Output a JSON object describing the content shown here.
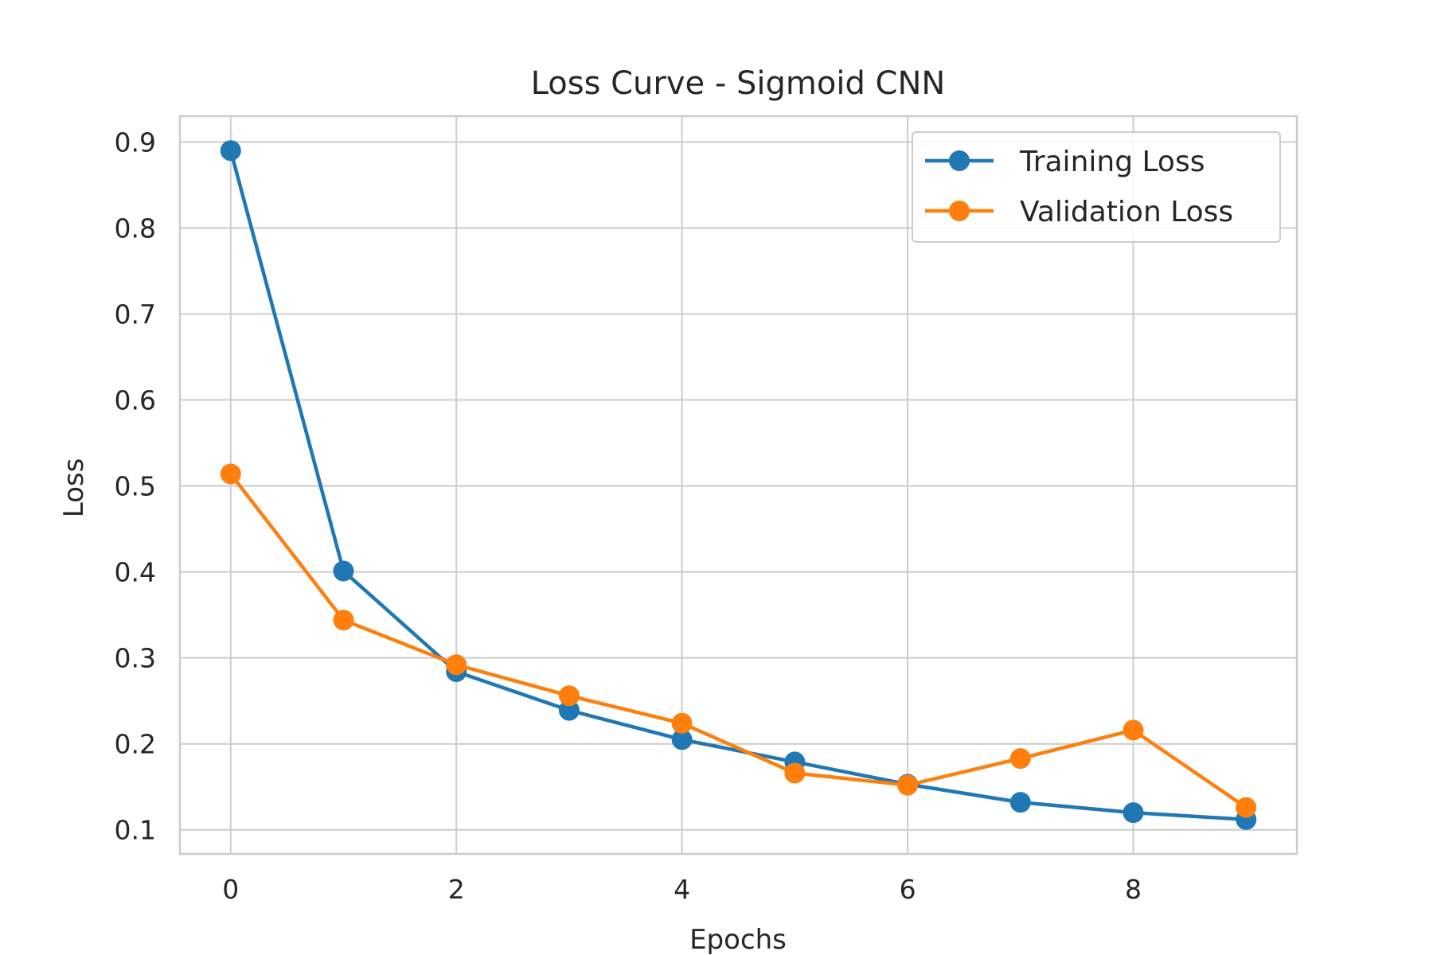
{
  "chart_data": {
    "type": "line",
    "title": "Loss Curve - Sigmoid CNN",
    "xlabel": "Epochs",
    "ylabel": "Loss",
    "x": [
      0,
      1,
      2,
      3,
      4,
      5,
      6,
      7,
      8,
      9
    ],
    "xlim": [
      -0.45,
      9.45
    ],
    "ylim": [
      0.072,
      0.93
    ],
    "x_ticks": [
      0,
      2,
      4,
      6,
      8
    ],
    "y_ticks": [
      0.1,
      0.2,
      0.3,
      0.4,
      0.5,
      0.6,
      0.7,
      0.8,
      0.9
    ],
    "x_tick_labels": [
      "0",
      "2",
      "4",
      "6",
      "8"
    ],
    "y_tick_labels": [
      "0.1",
      "0.2",
      "0.3",
      "0.4",
      "0.5",
      "0.6",
      "0.7",
      "0.8",
      "0.9"
    ],
    "grid": true,
    "legend_position": "top-right",
    "series": [
      {
        "name": "Training Loss",
        "color": "#1f77b4",
        "marker": "circle",
        "values": [
          0.89,
          0.401,
          0.284,
          0.239,
          0.205,
          0.179,
          0.153,
          0.132,
          0.12,
          0.112
        ]
      },
      {
        "name": "Validation Loss",
        "color": "#ff7f0e",
        "marker": "circle",
        "values": [
          0.514,
          0.344,
          0.292,
          0.256,
          0.224,
          0.166,
          0.152,
          0.183,
          0.216,
          0.126
        ]
      }
    ]
  }
}
